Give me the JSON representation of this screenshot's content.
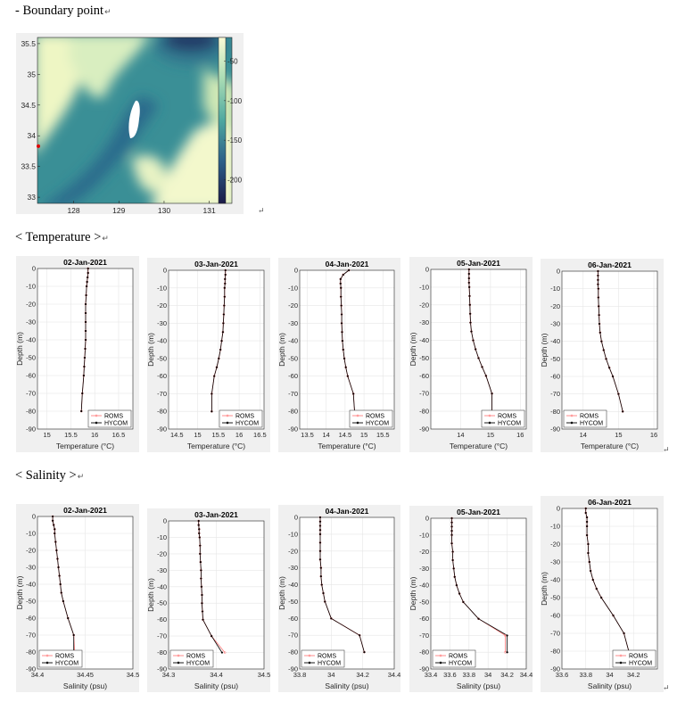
{
  "headings": {
    "boundary": "- Boundary point",
    "temperature": "< Temperature >",
    "salinity": "< Salinity >"
  },
  "paragraph_mark": "↵",
  "colors": {
    "roms": "#ff8080",
    "hycom": "#000000",
    "panel_bg": "#f0f0f0",
    "boundary_point": "#e00000"
  },
  "map": {
    "type": "heatmap",
    "x_ticks": [
      128,
      129,
      130,
      131
    ],
    "y_ticks": [
      33,
      33.5,
      34,
      34.5,
      35,
      35.5
    ],
    "x_tick_labels": [
      "128",
      "129",
      "130",
      "131"
    ],
    "y_tick_labels": [
      "33",
      "33.5",
      "34",
      "34.5",
      "35",
      "35.5"
    ],
    "xlim": [
      127.2,
      131.5
    ],
    "ylim": [
      32.9,
      35.6
    ],
    "colorbar_ticks": [
      -50,
      -100,
      -150,
      -200
    ],
    "colorbar_tick_labels": [
      "-50",
      "-100",
      "-150",
      "-200"
    ],
    "colorbar_range": [
      -230,
      -20
    ],
    "boundary_point": {
      "lon": 127.2,
      "lat": 33.83
    }
  },
  "chart_data": [
    {
      "type": "line",
      "section": "temperature",
      "title": "02-Jan-2021",
      "xlabel": "Temperature (°C)",
      "ylabel": "Depth (m)",
      "xlim": [
        14.8,
        16.8
      ],
      "ylim": [
        -90,
        0
      ],
      "x_ticks": [
        15,
        15.5,
        16,
        16.5
      ],
      "x_tick_labels": [
        "15",
        "15.5",
        "16",
        "16.5"
      ],
      "y_ticks": [
        0,
        -10,
        -20,
        -30,
        -40,
        -50,
        -60,
        -70,
        -80,
        -90
      ],
      "y_tick_labels": [
        "0",
        "-10",
        "-20",
        "-30",
        "-40",
        "-50",
        "-60",
        "-70",
        "-80",
        "-90"
      ],
      "legend": [
        "ROMS",
        "HYCOM"
      ],
      "legend_position": "bottom-right",
      "depth": [
        0,
        -2.5,
        -5,
        -7.5,
        -10,
        -15,
        -20,
        -25,
        -30,
        -35,
        -40,
        -45,
        -50,
        -55,
        -60,
        -70,
        -80
      ],
      "roms": [
        15.86,
        15.86,
        15.85,
        15.84,
        15.83,
        15.82,
        15.81,
        15.81,
        15.81,
        15.81,
        15.81,
        15.8,
        15.79,
        15.78,
        15.77,
        15.74,
        15.72
      ],
      "hycom": [
        15.86,
        15.86,
        15.85,
        15.84,
        15.83,
        15.82,
        15.81,
        15.81,
        15.81,
        15.81,
        15.81,
        15.8,
        15.79,
        15.78,
        15.77,
        15.74,
        15.72
      ]
    },
    {
      "type": "line",
      "section": "temperature",
      "title": "03-Jan-2021",
      "xlabel": "Temperature (°C)",
      "ylabel": "Depth (m)",
      "xlim": [
        14.3,
        16.6
      ],
      "ylim": [
        -90,
        0
      ],
      "x_ticks": [
        14.5,
        15,
        15.5,
        16,
        16.5
      ],
      "x_tick_labels": [
        "14.5",
        "15",
        "15.5",
        "16",
        "16.5"
      ],
      "y_ticks": [
        0,
        -10,
        -20,
        -30,
        -40,
        -50,
        -60,
        -70,
        -80,
        -90
      ],
      "y_tick_labels": [
        "0",
        "-10",
        "-20",
        "-30",
        "-40",
        "-50",
        "-60",
        "-70",
        "-80",
        "-90"
      ],
      "legend": [
        "ROMS",
        "HYCOM"
      ],
      "legend_position": "bottom-right",
      "depth": [
        0,
        -2.5,
        -5,
        -7.5,
        -10,
        -15,
        -20,
        -25,
        -30,
        -35,
        -40,
        -45,
        -50,
        -55,
        -60,
        -70,
        -80
      ],
      "roms": [
        15.67,
        15.67,
        15.66,
        15.66,
        15.65,
        15.65,
        15.64,
        15.63,
        15.62,
        15.61,
        15.58,
        15.55,
        15.51,
        15.46,
        15.4,
        15.34,
        15.34
      ],
      "hycom": [
        15.67,
        15.67,
        15.66,
        15.66,
        15.65,
        15.65,
        15.64,
        15.63,
        15.62,
        15.61,
        15.58,
        15.55,
        15.51,
        15.46,
        15.4,
        15.34,
        15.34
      ]
    },
    {
      "type": "line",
      "section": "temperature",
      "title": "04-Jan-2021",
      "xlabel": "Temperature (°C)",
      "ylabel": "Depth (m)",
      "xlim": [
        13.3,
        15.8
      ],
      "ylim": [
        -90,
        0
      ],
      "x_ticks": [
        13.5,
        14,
        14.5,
        15,
        15.5
      ],
      "x_tick_labels": [
        "13.5",
        "14",
        "14.5",
        "15",
        "15.5"
      ],
      "y_ticks": [
        0,
        -10,
        -20,
        -30,
        -40,
        -50,
        -60,
        -70,
        -80,
        -90
      ],
      "y_tick_labels": [
        "0",
        "-10",
        "-20",
        "-30",
        "-40",
        "-50",
        "-60",
        "-70",
        "-80",
        "-90"
      ],
      "legend": [
        "ROMS",
        "HYCOM"
      ],
      "legend_position": "bottom-right",
      "depth": [
        0,
        -2.5,
        -5,
        -7.5,
        -10,
        -15,
        -20,
        -25,
        -30,
        -35,
        -40,
        -45,
        -50,
        -55,
        -60,
        -70,
        -80
      ],
      "roms": [
        14.6,
        14.45,
        14.38,
        14.38,
        14.39,
        14.39,
        14.4,
        14.41,
        14.41,
        14.42,
        14.43,
        14.45,
        14.48,
        14.52,
        14.57,
        14.72,
        14.75
      ],
      "hycom": [
        14.6,
        14.45,
        14.38,
        14.38,
        14.39,
        14.39,
        14.4,
        14.41,
        14.41,
        14.42,
        14.43,
        14.45,
        14.48,
        14.52,
        14.57,
        14.72,
        14.75
      ]
    },
    {
      "type": "line",
      "section": "temperature",
      "title": "05-Jan-2021",
      "xlabel": "Temperature (°C)",
      "ylabel": "Depth (m)",
      "xlim": [
        13,
        16.2
      ],
      "ylim": [
        -90,
        0
      ],
      "x_ticks": [
        14,
        15,
        16
      ],
      "x_tick_labels": [
        "14",
        "15",
        "16"
      ],
      "y_ticks": [
        0,
        -10,
        -20,
        -30,
        -40,
        -50,
        -60,
        -70,
        -80,
        -90
      ],
      "y_tick_labels": [
        "0",
        "-10",
        "-20",
        "-30",
        "-40",
        "-50",
        "-60",
        "-70",
        "-80",
        "-90"
      ],
      "legend": [
        "ROMS",
        "HYCOM"
      ],
      "legend_position": "bottom-right",
      "depth": [
        0,
        -2.5,
        -5,
        -7.5,
        -10,
        -15,
        -20,
        -25,
        -30,
        -35,
        -40,
        -45,
        -50,
        -55,
        -60,
        -70,
        -80
      ],
      "roms": [
        14.28,
        14.28,
        14.28,
        14.28,
        14.29,
        14.3,
        14.31,
        14.32,
        14.33,
        14.36,
        14.42,
        14.5,
        14.6,
        14.72,
        14.85,
        15.05,
        15.05
      ],
      "hycom": [
        14.28,
        14.28,
        14.28,
        14.28,
        14.29,
        14.3,
        14.31,
        14.32,
        14.33,
        14.36,
        14.42,
        14.5,
        14.6,
        14.72,
        14.85,
        15.05,
        15.05
      ]
    },
    {
      "type": "line",
      "section": "temperature",
      "title": "06-Jan-2021",
      "xlabel": "Temperature (°C)",
      "ylabel": "Depth (m)",
      "xlim": [
        13.4,
        16.1
      ],
      "ylim": [
        -90,
        0
      ],
      "x_ticks": [
        14,
        15,
        16
      ],
      "x_tick_labels": [
        "14",
        "15",
        "16"
      ],
      "y_ticks": [
        0,
        -10,
        -20,
        -30,
        -40,
        -50,
        -60,
        -70,
        -80,
        -90
      ],
      "y_tick_labels": [
        "0",
        "-10",
        "-20",
        "-30",
        "-40",
        "-50",
        "-60",
        "-70",
        "-80",
        "-90"
      ],
      "legend": [
        "ROMS",
        "HYCOM"
      ],
      "legend_position": "bottom-left",
      "depth": [
        0,
        -2.5,
        -5,
        -7.5,
        -10,
        -15,
        -20,
        -25,
        -30,
        -35,
        -40,
        -45,
        -50,
        -55,
        -60,
        -70,
        -80
      ],
      "roms": [
        14.42,
        14.42,
        14.42,
        14.42,
        14.43,
        14.43,
        14.44,
        14.45,
        14.46,
        14.48,
        14.52,
        14.58,
        14.65,
        14.74,
        14.84,
        15.0,
        15.12
      ],
      "hycom": [
        14.42,
        14.42,
        14.42,
        14.42,
        14.43,
        14.43,
        14.44,
        14.45,
        14.46,
        14.48,
        14.52,
        14.58,
        14.65,
        14.74,
        14.84,
        15.0,
        15.12
      ]
    },
    {
      "type": "line",
      "section": "salinity",
      "title": "02-Jan-2021",
      "xlabel": "Salinity (psu)",
      "ylabel": "Depth (m)",
      "xlim": [
        34.4,
        34.5
      ],
      "ylim": [
        -90,
        0
      ],
      "x_ticks": [
        34.4,
        34.45,
        34.5
      ],
      "x_tick_labels": [
        "34.4",
        "34.45",
        "34.5"
      ],
      "y_ticks": [
        0,
        -10,
        -20,
        -30,
        -40,
        -50,
        -60,
        -70,
        -80,
        -90
      ],
      "y_tick_labels": [
        "0",
        "-10",
        "-20",
        "-30",
        "-40",
        "-50",
        "-60",
        "-70",
        "-80",
        "-90"
      ],
      "legend": [
        "ROMS",
        "HYCOM"
      ],
      "legend_position": "bottom-left",
      "depth": [
        0,
        -2.5,
        -5,
        -7.5,
        -10,
        -15,
        -20,
        -25,
        -30,
        -35,
        -40,
        -45,
        -50,
        -60,
        -70,
        -80
      ],
      "roms": [
        34.416,
        34.416,
        34.417,
        34.418,
        34.418,
        34.419,
        34.42,
        34.421,
        34.422,
        34.423,
        34.424,
        34.425,
        34.427,
        34.432,
        34.438,
        34.439
      ],
      "hycom": [
        34.416,
        34.416,
        34.417,
        34.418,
        34.418,
        34.419,
        34.42,
        34.421,
        34.422,
        34.423,
        34.424,
        34.425,
        34.427,
        34.432,
        34.438,
        34.438
      ]
    },
    {
      "type": "line",
      "section": "salinity",
      "title": "03-Jan-2021",
      "xlabel": "Salinity (psu)",
      "ylabel": "Depth (m)",
      "xlim": [
        34.3,
        34.5
      ],
      "ylim": [
        -90,
        0
      ],
      "x_ticks": [
        34.3,
        34.4,
        34.5
      ],
      "x_tick_labels": [
        "34.3",
        "34.4",
        "34.5"
      ],
      "y_ticks": [
        0,
        -10,
        -20,
        -30,
        -40,
        -50,
        -60,
        -70,
        -80,
        -90
      ],
      "y_tick_labels": [
        "0",
        "-10",
        "-20",
        "-30",
        "-40",
        "-50",
        "-60",
        "-70",
        "-80",
        "-90"
      ],
      "legend": [
        "ROMS",
        "HYCOM"
      ],
      "legend_position": "bottom-left",
      "depth": [
        0,
        -2.5,
        -5,
        -7.5,
        -10,
        -15,
        -20,
        -25,
        -30,
        -35,
        -40,
        -45,
        -50,
        -55,
        -60,
        -70,
        -80
      ],
      "roms": [
        34.363,
        34.363,
        34.364,
        34.364,
        34.365,
        34.366,
        34.366,
        34.367,
        34.368,
        34.368,
        34.369,
        34.37,
        34.37,
        34.371,
        34.372,
        34.39,
        34.418
      ],
      "hycom": [
        34.363,
        34.363,
        34.364,
        34.364,
        34.365,
        34.366,
        34.366,
        34.367,
        34.368,
        34.368,
        34.369,
        34.37,
        34.37,
        34.371,
        34.372,
        34.39,
        34.412
      ]
    },
    {
      "type": "line",
      "section": "salinity",
      "title": "04-Jan-2021",
      "xlabel": "Salinity (psu)",
      "ylabel": "Depth (m)",
      "xlim": [
        33.8,
        34.4
      ],
      "ylim": [
        -90,
        0
      ],
      "x_ticks": [
        33.8,
        34,
        34.2,
        34.4
      ],
      "x_tick_labels": [
        "33.8",
        "34",
        "34.2",
        "34.4"
      ],
      "y_ticks": [
        0,
        -10,
        -20,
        -30,
        -40,
        -50,
        -60,
        -70,
        -80,
        -90
      ],
      "y_tick_labels": [
        "0",
        "-10",
        "-20",
        "-30",
        "-40",
        "-50",
        "-60",
        "-70",
        "-80",
        "-90"
      ],
      "legend": [
        "ROMS",
        "HYCOM"
      ],
      "legend_position": "bottom-left",
      "depth": [
        0,
        -2.5,
        -5,
        -7.5,
        -10,
        -15,
        -20,
        -25,
        -30,
        -35,
        -40,
        -45,
        -50,
        -60,
        -70,
        -80
      ],
      "roms": [
        33.93,
        33.93,
        33.93,
        33.93,
        33.93,
        33.93,
        33.93,
        33.93,
        33.935,
        33.935,
        33.94,
        33.95,
        33.96,
        34.0,
        34.18,
        34.21
      ],
      "hycom": [
        33.93,
        33.93,
        33.93,
        33.93,
        33.93,
        33.93,
        33.93,
        33.93,
        33.935,
        33.935,
        33.94,
        33.95,
        33.96,
        34.0,
        34.18,
        34.21
      ]
    },
    {
      "type": "line",
      "section": "salinity",
      "title": "05-Jan-2021",
      "xlabel": "Salinity (psu)",
      "ylabel": "Depth (m)",
      "xlim": [
        33.4,
        34.4
      ],
      "ylim": [
        -90,
        0
      ],
      "x_ticks": [
        33.4,
        33.6,
        33.8,
        34,
        34.2,
        34.4
      ],
      "x_tick_labels": [
        "33.4",
        "33.6",
        "33.8",
        "34",
        "34.2",
        "34.4"
      ],
      "y_ticks": [
        0,
        -10,
        -20,
        -30,
        -40,
        -50,
        -60,
        -70,
        -80,
        -90
      ],
      "y_tick_labels": [
        "0",
        "-10",
        "-20",
        "-30",
        "-40",
        "-50",
        "-60",
        "-70",
        "-80",
        "-90"
      ],
      "legend": [
        "ROMS",
        "HYCOM"
      ],
      "legend_position": "bottom-left",
      "depth": [
        0,
        -2.5,
        -5,
        -7.5,
        -10,
        -15,
        -20,
        -25,
        -30,
        -35,
        -40,
        -45,
        -50,
        -60,
        -70,
        -80
      ],
      "roms": [
        33.62,
        33.62,
        33.62,
        33.62,
        33.62,
        33.62,
        33.63,
        33.63,
        33.64,
        33.65,
        33.67,
        33.7,
        33.74,
        33.9,
        34.18,
        34.18
      ],
      "hycom": [
        33.62,
        33.62,
        33.62,
        33.62,
        33.62,
        33.62,
        33.63,
        33.63,
        33.64,
        33.65,
        33.67,
        33.7,
        33.74,
        33.9,
        34.2,
        34.2
      ]
    },
    {
      "type": "line",
      "section": "salinity",
      "title": "06-Jan-2021",
      "xlabel": "Salinity (psu)",
      "ylabel": "Depth (m)",
      "xlim": [
        33.6,
        34.4
      ],
      "ylim": [
        -90,
        0
      ],
      "x_ticks": [
        33.6,
        33.8,
        34,
        34.2
      ],
      "x_tick_labels": [
        "33.6",
        "33.8",
        "34",
        "34.2"
      ],
      "y_ticks": [
        0,
        -10,
        -20,
        -30,
        -40,
        -50,
        -60,
        -70,
        -80,
        -90
      ],
      "y_tick_labels": [
        "0",
        "-10",
        "-20",
        "-30",
        "-40",
        "-50",
        "-60",
        "-70",
        "-80",
        "-90"
      ],
      "legend": [
        "ROMS",
        "HYCOM"
      ],
      "legend_position": "bottom-right",
      "depth": [
        0,
        -2.5,
        -5,
        -7.5,
        -10,
        -15,
        -20,
        -25,
        -30,
        -35,
        -40,
        -45,
        -50,
        -60,
        -70,
        -80
      ],
      "roms": [
        33.8,
        33.8,
        33.81,
        33.81,
        33.81,
        33.81,
        33.82,
        33.82,
        33.83,
        33.84,
        33.86,
        33.89,
        33.93,
        34.03,
        34.12,
        34.16
      ],
      "hycom": [
        33.8,
        33.8,
        33.81,
        33.81,
        33.81,
        33.81,
        33.82,
        33.82,
        33.83,
        33.84,
        33.86,
        33.89,
        33.93,
        34.03,
        34.12,
        34.16
      ]
    }
  ]
}
